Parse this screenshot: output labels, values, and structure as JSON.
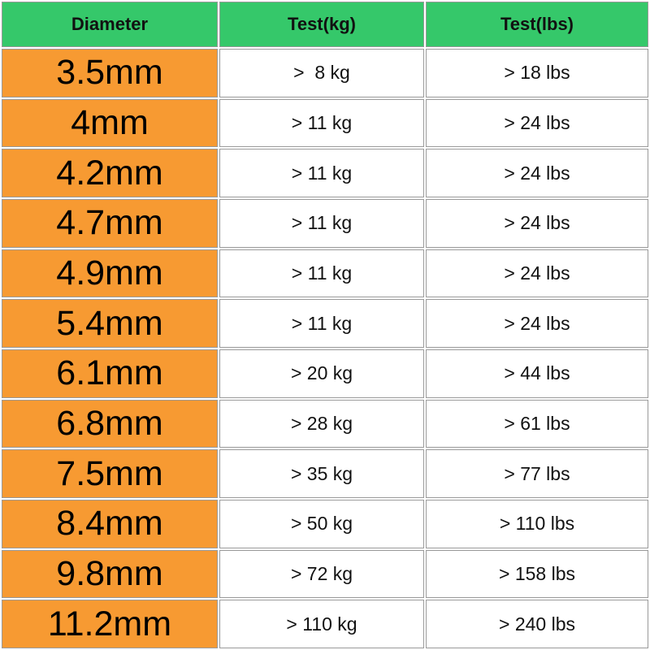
{
  "table": {
    "header": [
      "Diameter",
      "Test(kg)",
      "Test(lbs)"
    ],
    "rows": [
      [
        "3.5mm",
        ">  8 kg",
        "> 18 lbs"
      ],
      [
        "4mm",
        "> 11 kg",
        "> 24 lbs"
      ],
      [
        "4.2mm",
        "> 11 kg",
        "> 24 lbs"
      ],
      [
        "4.7mm",
        "> 11 kg",
        "> 24 lbs"
      ],
      [
        "4.9mm",
        "> 11 kg",
        "> 24 lbs"
      ],
      [
        "5.4mm",
        "> 11 kg",
        "> 24 lbs"
      ],
      [
        "6.1mm",
        "> 20 kg",
        "> 44 lbs"
      ],
      [
        "6.8mm",
        "> 28 kg",
        "> 61 lbs"
      ],
      [
        "7.5mm",
        "> 35 kg",
        "> 77 lbs"
      ],
      [
        "8.4mm",
        "> 50 kg",
        "> 110 lbs"
      ],
      [
        "9.8mm",
        "> 72 kg",
        "> 158 lbs"
      ],
      [
        "11.2mm",
        "> 110 kg",
        "> 240 lbs"
      ]
    ]
  }
}
